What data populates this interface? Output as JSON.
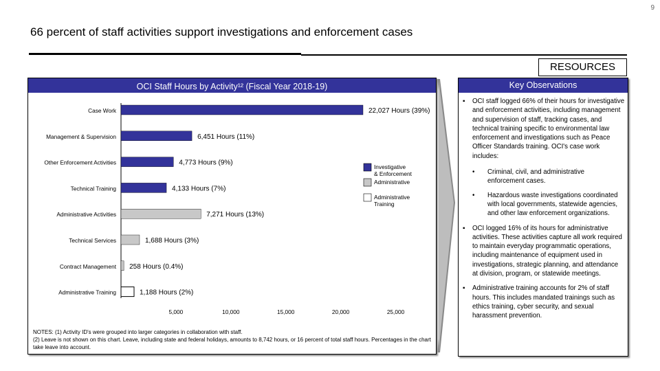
{
  "page_number": "9",
  "title": "66 percent of staff activities support investigations and enforcement cases",
  "resources_label": "RESOURCES",
  "chart_panel": {
    "header": "OCI Staff Hours by Activity¹² (Fiscal Year 2018-19)"
  },
  "chart_data": {
    "type": "bar",
    "orientation": "horizontal",
    "title": "OCI Staff Hours by Activity¹² (Fiscal Year 2018-19)",
    "categories": [
      "Case Work",
      "Management & Supervision",
      "Other Enforcement Activities",
      "Technical Training",
      "Administrative Activities",
      "Technical Services",
      "Contract Management",
      "Administrative Training"
    ],
    "values": [
      22027,
      6451,
      4773,
      4133,
      7271,
      1688,
      258,
      1188
    ],
    "data_labels": [
      "22,027 Hours (39%)",
      "6,451 Hours (11%)",
      "4,773 Hours (9%)",
      "4,133 Hours (7%)",
      "7,271 Hours (13%)",
      "1,688 Hours (3%)",
      "258 Hours (0.4%)",
      "1,188 Hours (2%)"
    ],
    "groups": [
      "Investigative & Enforcement",
      "Investigative & Enforcement",
      "Investigative & Enforcement",
      "Investigative & Enforcement",
      "Administrative",
      "Administrative",
      "Administrative",
      "Administrative Training"
    ],
    "xlim": [
      0,
      28000
    ],
    "xticks": [
      5000,
      10000,
      15000,
      20000,
      25000
    ],
    "xtick_labels": [
      "5,000",
      "10,000",
      "15,000",
      "20,000",
      "25,000"
    ],
    "legend": [
      {
        "name": "Investigative & Enforcement",
        "color": "#33339a"
      },
      {
        "name": "Administrative",
        "color": "#c8c8c8"
      },
      {
        "name": "Administrative Training",
        "color": "#ffffff"
      }
    ],
    "legend_position": "right",
    "colors": {
      "Investigative & Enforcement": "#33339a",
      "Administrative": "#c8c8c8",
      "Administrative Training": "#ffffff"
    }
  },
  "notes": "NOTES: (1) Activity ID's were grouped into larger categories in collaboration with staff.\n(2) Leave is not shown on this chart. Leave, including state and federal holidays, amounts to 8,742 hours, or 16 percent of total staff hours. Percentages in the chart take leave into account.",
  "observations": {
    "header": "Key Observations",
    "bullets": [
      {
        "text": "OCI staff logged 66% of their hours for investigative and enforcement activities, including management and supervision of staff, tracking cases, and technical training specific to environmental law enforcement and investigations such as Peace Officer Standards training. OCI's case work includes:",
        "sub": [
          "Criminal, civil, and administrative enforcement cases.",
          "Hazardous waste investigations coordinated with local governments, statewide agencies, and other law enforcement organizations."
        ]
      },
      {
        "text": "OCI logged 16% of its hours for administrative activities. These activities capture all work required to maintain everyday programmatic operations, including maintenance of equipment used in investigations, strategic planning, and attendance at division, program, or statewide meetings.",
        "sub": []
      },
      {
        "text": "Administrative training accounts for 2% of staff hours. This includes mandated trainings such as ethics training, cyber security, and sexual harassment prevention.",
        "sub": []
      }
    ]
  }
}
